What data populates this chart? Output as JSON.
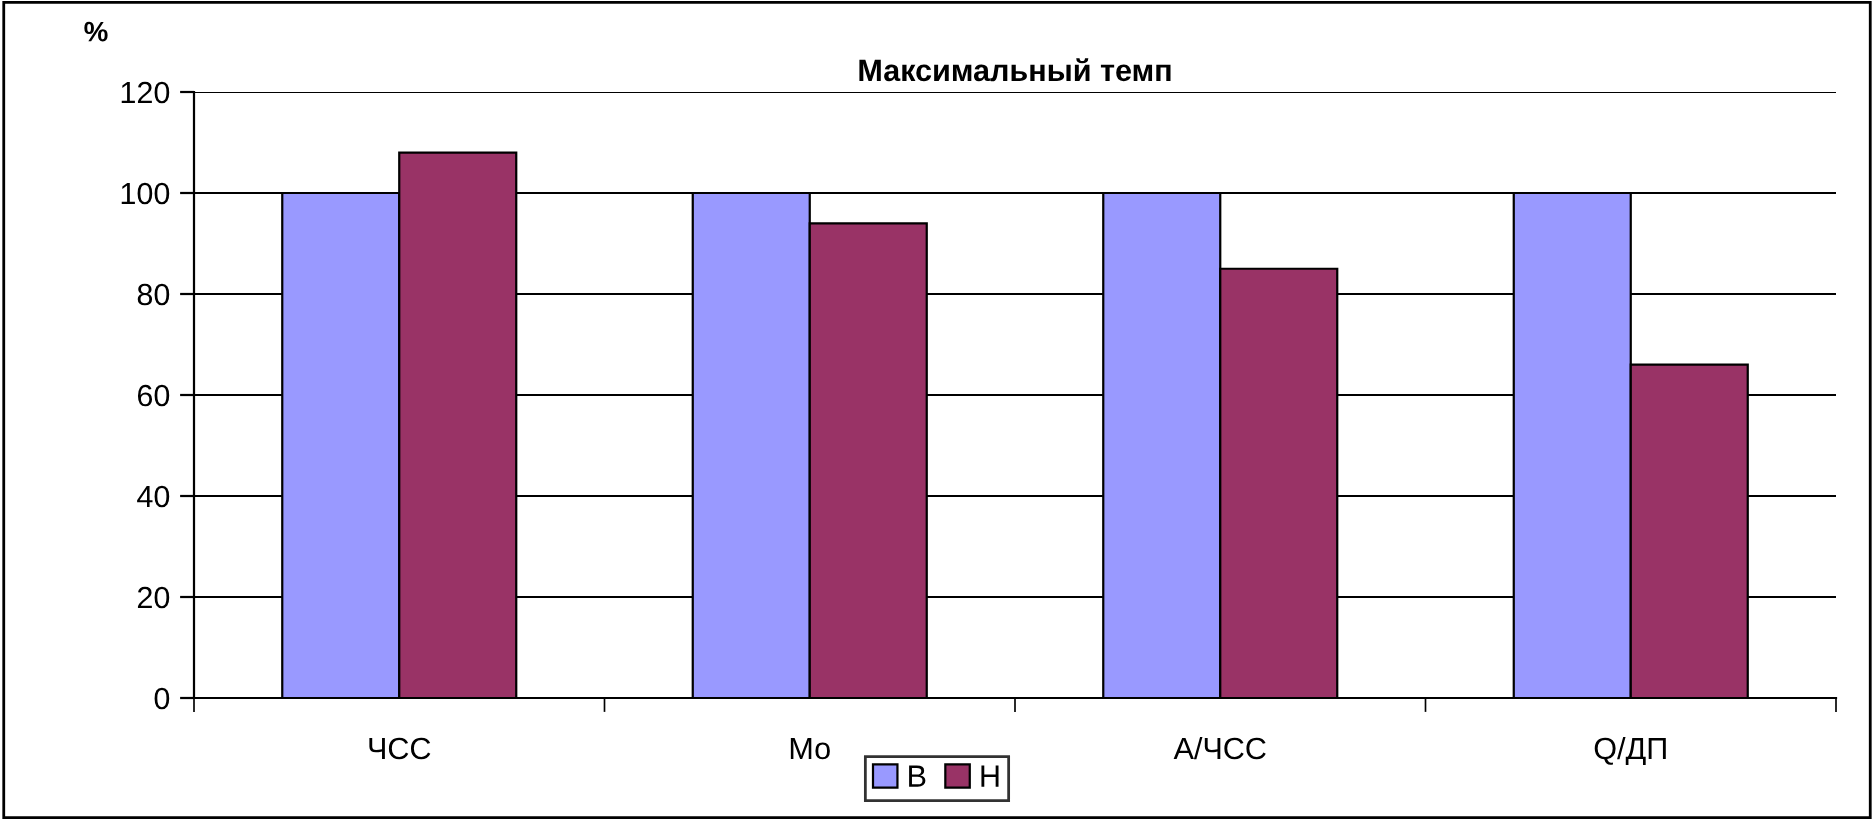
{
  "chart_data": {
    "type": "bar",
    "title": "Максимальный темп",
    "ylabel": "%",
    "categories": [
      "ЧСС",
      "Мо",
      "А/ЧСС",
      "Q/ДП"
    ],
    "series": [
      {
        "name": "В",
        "color": "#9999ff",
        "values": [
          100,
          100,
          100,
          100
        ]
      },
      {
        "name": "Н",
        "color": "#993366",
        "values": [
          108,
          94,
          85,
          66
        ]
      }
    ],
    "ylim": [
      0,
      120
    ],
    "yticks": [
      0,
      20,
      40,
      60,
      80,
      100,
      120
    ],
    "grid": "y",
    "legend": "bottom"
  }
}
